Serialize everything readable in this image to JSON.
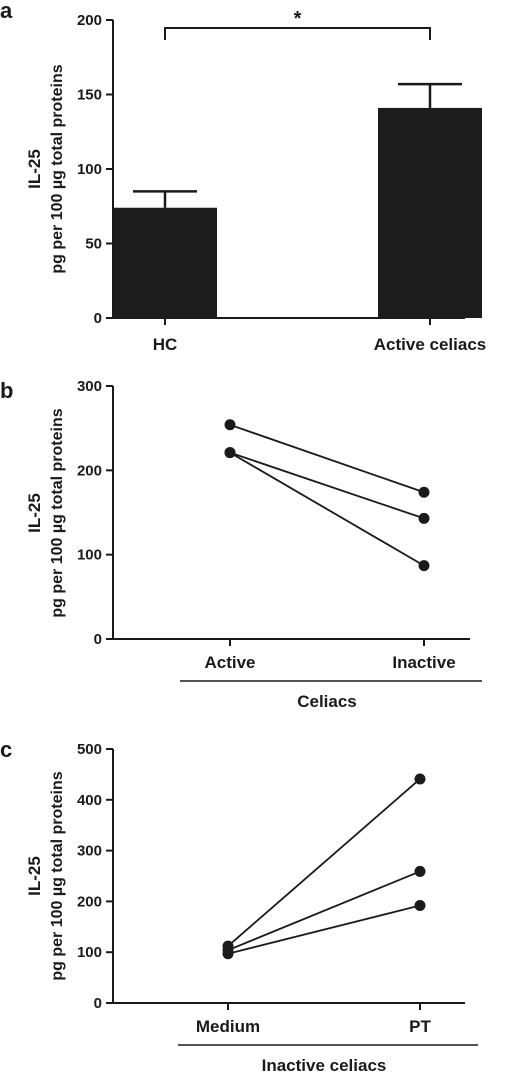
{
  "chart_data": [
    {
      "panel": "a",
      "type": "bar",
      "categories": [
        "HC",
        "Active celiacs"
      ],
      "values": [
        74,
        141
      ],
      "errors": [
        11,
        16
      ],
      "ylabel_line1": "IL-25",
      "ylabel_line2": "pg per 100 µg total proteins",
      "ylim": [
        0,
        200
      ],
      "yticks": [
        0,
        50,
        100,
        150,
        200
      ],
      "significance": "*",
      "bar_color": "#1c1c1c"
    },
    {
      "panel": "b",
      "type": "line",
      "categories": [
        "Active",
        "Inactive"
      ],
      "group_label": "Celiacs",
      "ylabel_line1": "IL-25",
      "ylabel_line2": "pg per 100 µg total proteins",
      "ylim": [
        0,
        300
      ],
      "yticks": [
        0,
        100,
        200,
        300
      ],
      "series": [
        {
          "values": [
            254,
            174
          ]
        },
        {
          "values": [
            221,
            143
          ]
        },
        {
          "values": [
            221,
            87
          ]
        }
      ]
    },
    {
      "panel": "c",
      "type": "line",
      "categories": [
        "Medium",
        "PT"
      ],
      "group_label": "Inactive celiacs",
      "ylabel_line1": "IL-25",
      "ylabel_line2": "pg per 100 µg total proteins",
      "ylim": [
        0,
        500
      ],
      "yticks": [
        0,
        100,
        200,
        300,
        400,
        500
      ],
      "series": [
        {
          "values": [
            112,
            441
          ]
        },
        {
          "values": [
            104,
            259
          ]
        },
        {
          "values": [
            97,
            192
          ]
        }
      ]
    }
  ]
}
